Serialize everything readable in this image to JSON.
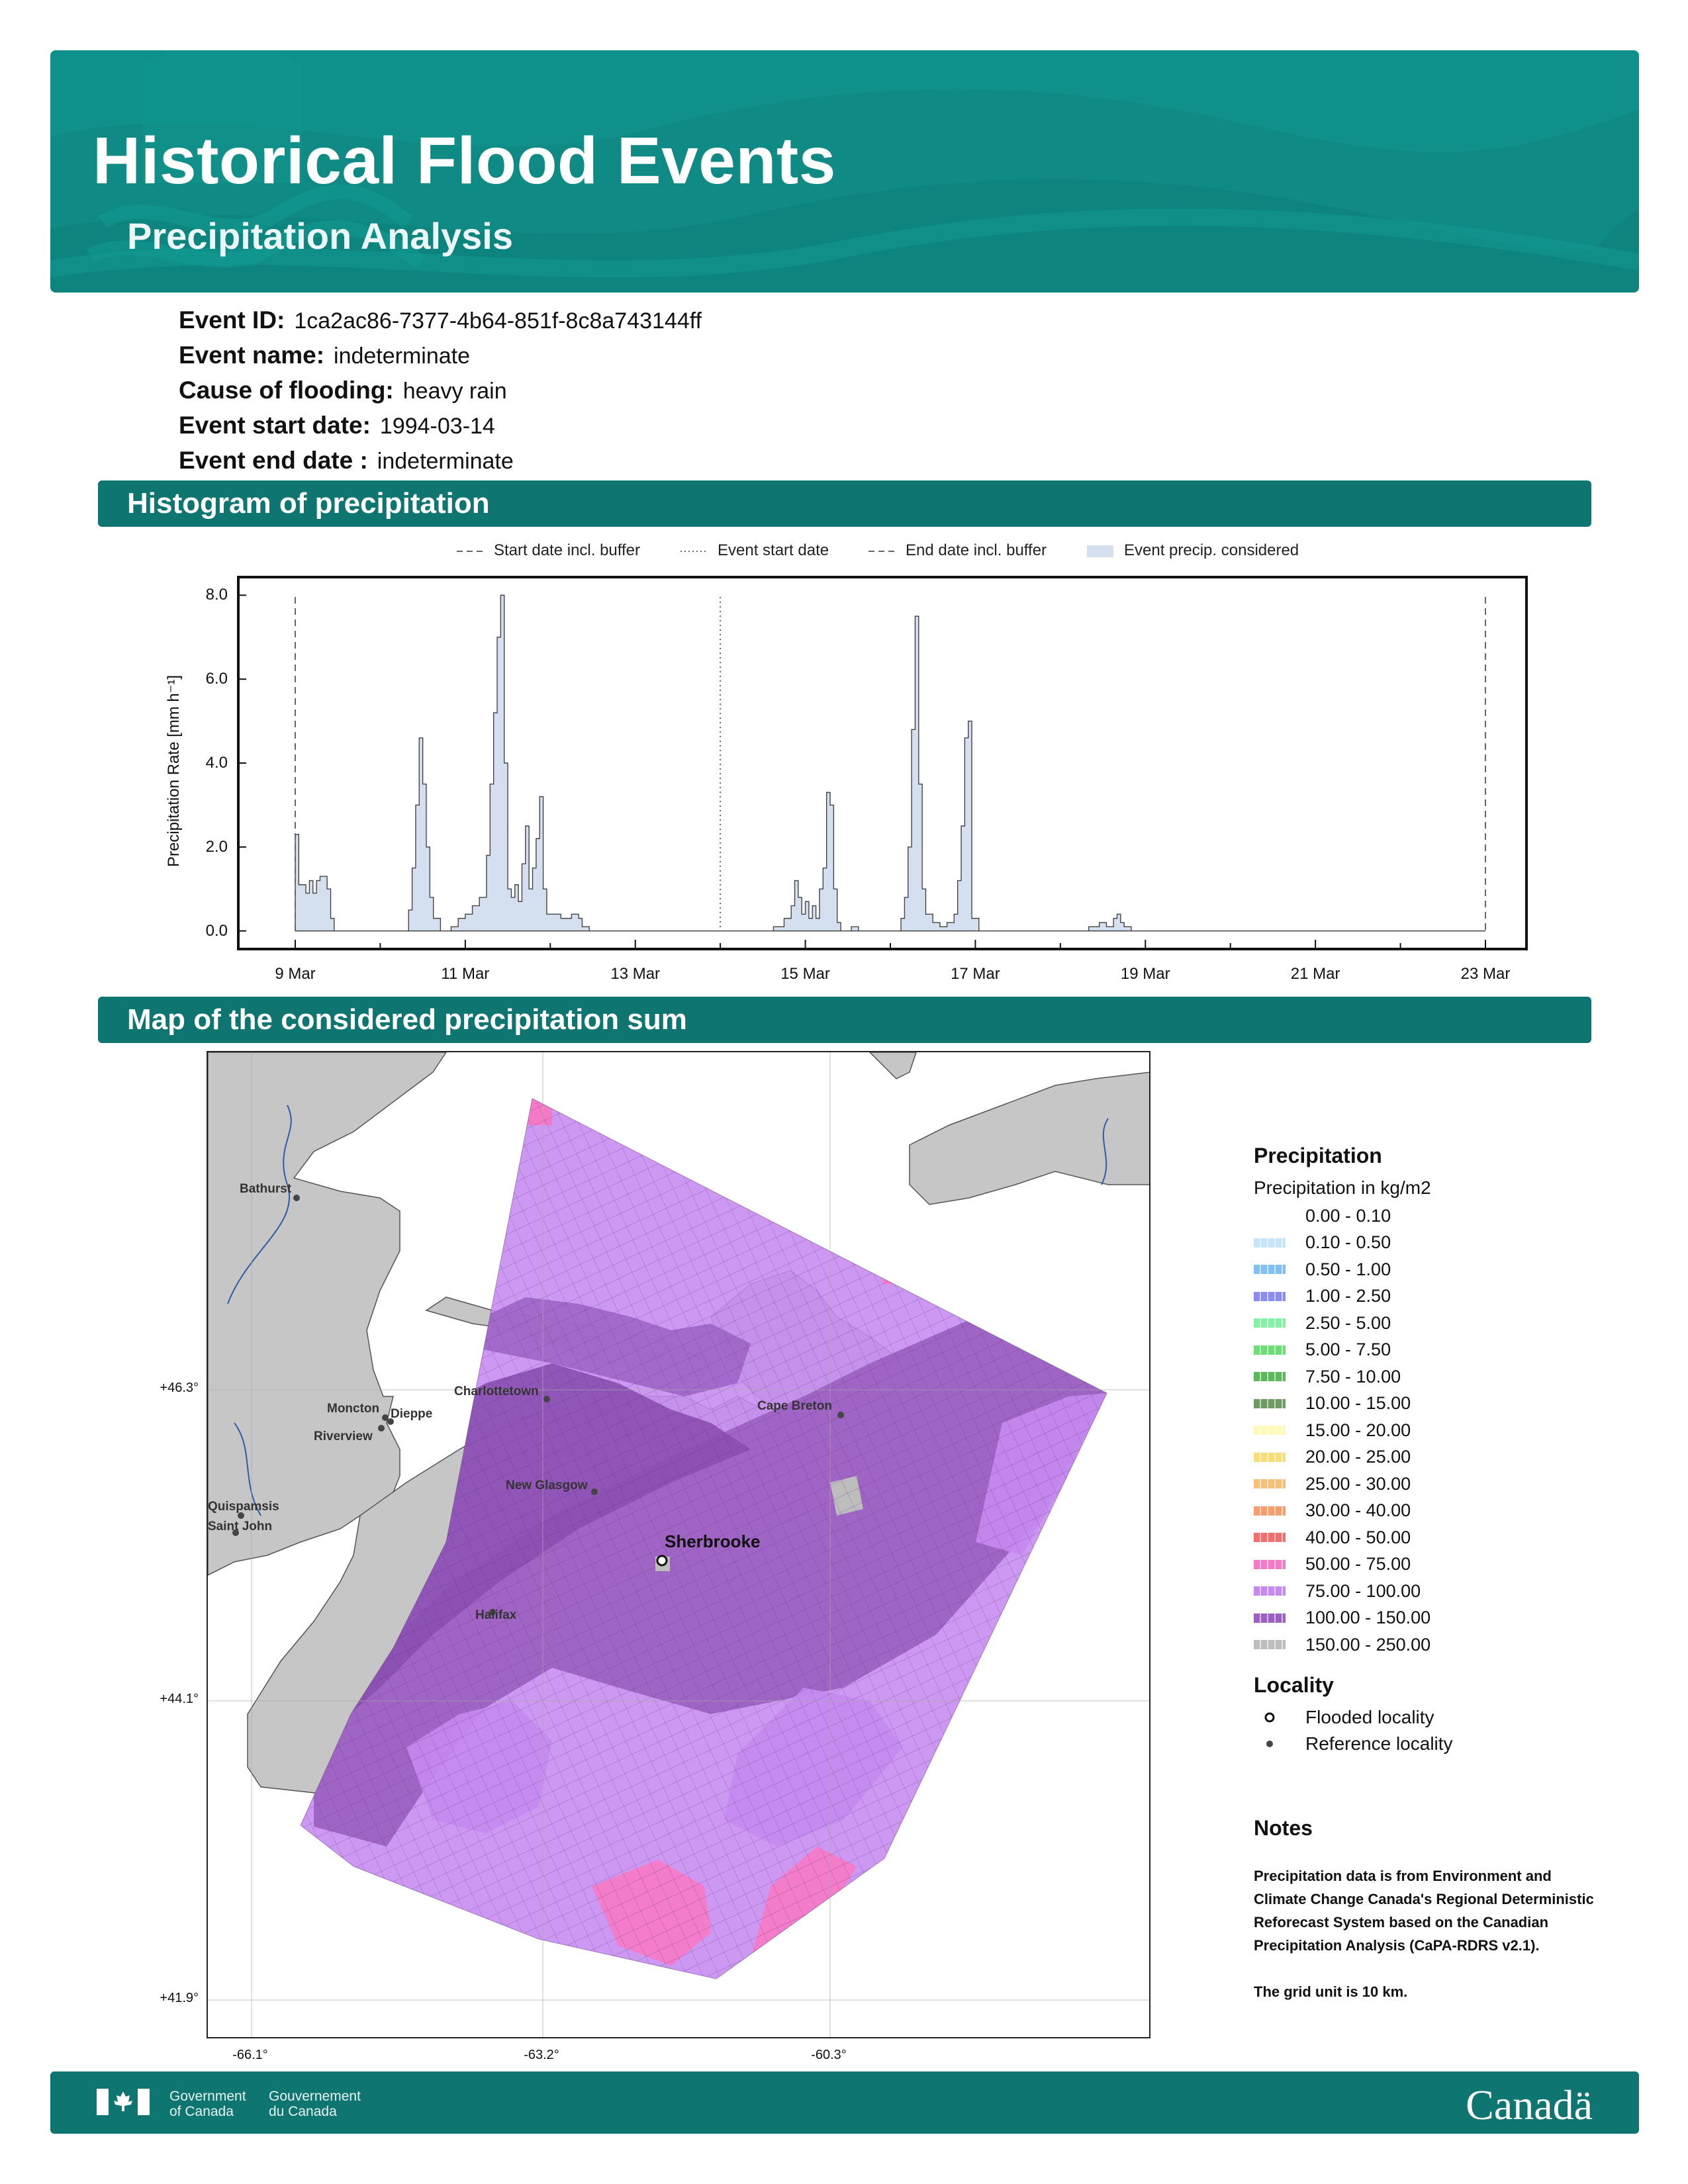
{
  "header": {
    "title": "Historical Flood Events",
    "subtitle": "Precipitation Analysis",
    "bg_color": "#0f8a84"
  },
  "event": [
    {
      "label": "Event ID:",
      "value": "1ca2ac86-7377-4b64-851f-8c8a743144ff"
    },
    {
      "label": "Event name:",
      "value": "indeterminate"
    },
    {
      "label": "Cause of flooding:",
      "value": "heavy rain"
    },
    {
      "label": "Event start date:",
      "value": "1994-03-14"
    },
    {
      "label": "Event end date :",
      "value": "indeterminate"
    }
  ],
  "sections": {
    "histogram": "Histogram of precipitation",
    "map": "Map of the considered precipitation sum"
  },
  "chart_data": {
    "type": "area",
    "ylabel": "Precipitation Rate [mm h⁻¹]",
    "ylim": [
      -0.4,
      8.4
    ],
    "yticks": [
      "0.0",
      "2.0",
      "4.0",
      "6.0",
      "8.0"
    ],
    "xticks": [
      "9 Mar",
      "11 Mar",
      "13 Mar",
      "15 Mar",
      "17 Mar",
      "19 Mar",
      "21 Mar",
      "23 Mar"
    ],
    "x_range_days": [
      "1994-03-09",
      "1994-03-23"
    ],
    "legend": [
      {
        "label": "Start date incl. buffer",
        "style": "dashed"
      },
      {
        "label": "Event start date",
        "style": "dotted"
      },
      {
        "label": "End date incl. buffer",
        "style": "dashed"
      },
      {
        "label": "Event precip. considered",
        "style": "fill"
      }
    ],
    "fill_color": "#d4dff0",
    "vlines": [
      {
        "date": "1994-03-09",
        "style": "dashed"
      },
      {
        "date": "1994-03-14",
        "style": "dotted"
      },
      {
        "date": "1994-03-23",
        "style": "dashed"
      }
    ],
    "series": [
      {
        "name": "Event precip. considered",
        "points": [
          [
            "1994-03-09 00:00",
            2.3
          ],
          [
            "1994-03-09 01:00",
            1.1
          ],
          [
            "1994-03-09 03:00",
            0.9
          ],
          [
            "1994-03-09 04:00",
            1.2
          ],
          [
            "1994-03-09 05:00",
            0.9
          ],
          [
            "1994-03-09 06:00",
            1.2
          ],
          [
            "1994-03-09 07:00",
            1.3
          ],
          [
            "1994-03-09 09:00",
            1.0
          ],
          [
            "1994-03-09 10:00",
            0.3
          ],
          [
            "1994-03-09 11:00",
            0.0
          ],
          [
            "1994-03-10 07:00",
            0.0
          ],
          [
            "1994-03-10 08:00",
            0.5
          ],
          [
            "1994-03-10 09:00",
            1.5
          ],
          [
            "1994-03-10 10:00",
            3.0
          ],
          [
            "1994-03-10 11:00",
            4.6
          ],
          [
            "1994-03-10 12:00",
            3.5
          ],
          [
            "1994-03-10 13:00",
            2.0
          ],
          [
            "1994-03-10 14:00",
            0.8
          ],
          [
            "1994-03-10 15:00",
            0.3
          ],
          [
            "1994-03-10 17:00",
            0.0
          ],
          [
            "1994-03-10 20:00",
            0.1
          ],
          [
            "1994-03-10 22:00",
            0.3
          ],
          [
            "1994-03-11 00:00",
            0.4
          ],
          [
            "1994-03-11 02:00",
            0.6
          ],
          [
            "1994-03-11 04:00",
            0.8
          ],
          [
            "1994-03-11 06:00",
            1.8
          ],
          [
            "1994-03-11 07:00",
            3.5
          ],
          [
            "1994-03-11 08:00",
            5.2
          ],
          [
            "1994-03-11 09:00",
            7.0
          ],
          [
            "1994-03-11 10:00",
            8.0
          ],
          [
            "1994-03-11 11:00",
            4.0
          ],
          [
            "1994-03-11 12:00",
            1.0
          ],
          [
            "1994-03-11 13:00",
            0.8
          ],
          [
            "1994-03-11 14:00",
            1.1
          ],
          [
            "1994-03-11 15:00",
            0.7
          ],
          [
            "1994-03-11 16:00",
            1.6
          ],
          [
            "1994-03-11 17:00",
            2.5
          ],
          [
            "1994-03-11 18:00",
            1.0
          ],
          [
            "1994-03-11 19:00",
            1.5
          ],
          [
            "1994-03-11 20:00",
            2.2
          ],
          [
            "1994-03-11 21:00",
            3.2
          ],
          [
            "1994-03-11 22:00",
            1.0
          ],
          [
            "1994-03-11 23:00",
            0.4
          ],
          [
            "1994-03-12 03:00",
            0.3
          ],
          [
            "1994-03-12 06:00",
            0.4
          ],
          [
            "1994-03-12 08:00",
            0.3
          ],
          [
            "1994-03-12 09:00",
            0.1
          ],
          [
            "1994-03-12 11:00",
            0.0
          ],
          [
            "1994-03-14 12:00",
            0.0
          ],
          [
            "1994-03-14 15:00",
            0.1
          ],
          [
            "1994-03-14 18:00",
            0.3
          ],
          [
            "1994-03-14 20:00",
            0.6
          ],
          [
            "1994-03-14 21:00",
            1.2
          ],
          [
            "1994-03-14 22:00",
            0.8
          ],
          [
            "1994-03-14 23:00",
            0.4
          ],
          [
            "1994-03-15 00:00",
            0.7
          ],
          [
            "1994-03-15 01:00",
            0.3
          ],
          [
            "1994-03-15 02:00",
            0.6
          ],
          [
            "1994-03-15 03:00",
            0.3
          ],
          [
            "1994-03-15 04:00",
            1.0
          ],
          [
            "1994-03-15 05:00",
            1.5
          ],
          [
            "1994-03-15 06:00",
            3.3
          ],
          [
            "1994-03-15 07:00",
            3.0
          ],
          [
            "1994-03-15 08:00",
            1.0
          ],
          [
            "1994-03-15 09:00",
            0.2
          ],
          [
            "1994-03-15 10:00",
            0.0
          ],
          [
            "1994-03-15 13:00",
            0.1
          ],
          [
            "1994-03-15 15:00",
            0.0
          ],
          [
            "1994-03-16 02:00",
            0.0
          ],
          [
            "1994-03-16 03:00",
            0.3
          ],
          [
            "1994-03-16 04:00",
            0.8
          ],
          [
            "1994-03-16 05:00",
            2.0
          ],
          [
            "1994-03-16 06:00",
            4.8
          ],
          [
            "1994-03-16 07:00",
            7.5
          ],
          [
            "1994-03-16 08:00",
            3.5
          ],
          [
            "1994-03-16 09:00",
            1.0
          ],
          [
            "1994-03-16 10:00",
            0.4
          ],
          [
            "1994-03-16 12:00",
            0.2
          ],
          [
            "1994-03-16 14:00",
            0.1
          ],
          [
            "1994-03-16 16:00",
            0.2
          ],
          [
            "1994-03-16 18:00",
            0.4
          ],
          [
            "1994-03-16 19:00",
            1.2
          ],
          [
            "1994-03-16 20:00",
            2.5
          ],
          [
            "1994-03-16 21:00",
            4.6
          ],
          [
            "1994-03-16 22:00",
            5.0
          ],
          [
            "1994-03-16 23:00",
            0.3
          ],
          [
            "1994-03-17 01:00",
            0.0
          ],
          [
            "1994-03-18 00:00",
            0.0
          ],
          [
            "1994-03-18 04:00",
            0.0
          ],
          [
            "1994-03-18 08:00",
            0.1
          ],
          [
            "1994-03-18 11:00",
            0.2
          ],
          [
            "1994-03-18 13:00",
            0.1
          ],
          [
            "1994-03-18 15:00",
            0.3
          ],
          [
            "1994-03-18 16:00",
            0.4
          ],
          [
            "1994-03-18 17:00",
            0.2
          ],
          [
            "1994-03-18 18:00",
            0.1
          ],
          [
            "1994-03-18 20:00",
            0.0
          ],
          [
            "1994-03-23 00:00",
            0.0
          ]
        ]
      }
    ]
  },
  "map": {
    "lat_labels": [
      "+46.3°",
      "+44.1°",
      "+41.9°"
    ],
    "lon_labels": [
      "-66.1°",
      "-63.2°",
      "-60.3°"
    ],
    "localities": [
      {
        "name": "Bathurst",
        "type": "reference"
      },
      {
        "name": "Charlottetown",
        "type": "reference"
      },
      {
        "name": "Moncton",
        "type": "reference"
      },
      {
        "name": "Dieppe",
        "type": "reference"
      },
      {
        "name": "Riverview",
        "type": "reference"
      },
      {
        "name": "Cape Breton",
        "type": "reference"
      },
      {
        "name": "New Glasgow",
        "type": "reference"
      },
      {
        "name": "Quispamsis",
        "type": "reference"
      },
      {
        "name": "Saint John",
        "type": "reference"
      },
      {
        "name": "Halifax",
        "type": "reference"
      },
      {
        "name": "Sherbrooke",
        "type": "flooded"
      }
    ]
  },
  "legend": {
    "title": "Precipitation",
    "subtitle": "Precipitation in kg/m2",
    "classes": [
      {
        "label": "0.00 - 0.10",
        "color": "#ffffff"
      },
      {
        "label": "0.10 - 0.50",
        "color": "#c6e3f7"
      },
      {
        "label": "0.50 - 1.00",
        "color": "#82c0ef"
      },
      {
        "label": "1.00 - 2.50",
        "color": "#8a8cf0"
      },
      {
        "label": "2.50 - 5.00",
        "color": "#86f0a8"
      },
      {
        "label": "5.00 - 7.50",
        "color": "#6fdc78"
      },
      {
        "label": "7.50 - 10.00",
        "color": "#5cb85a"
      },
      {
        "label": "10.00 - 15.00",
        "color": "#6f9a63"
      },
      {
        "label": "15.00 - 20.00",
        "color": "#fffab8"
      },
      {
        "label": "20.00 - 25.00",
        "color": "#f8de7a"
      },
      {
        "label": "25.00 - 30.00",
        "color": "#f5c07a"
      },
      {
        "label": "30.00 - 40.00",
        "color": "#f39f6e"
      },
      {
        "label": "40.00 - 50.00",
        "color": "#f07070"
      },
      {
        "label": "50.00 - 75.00",
        "color": "#f47ac8"
      },
      {
        "label": "75.00 - 100.00",
        "color": "#c58af0"
      },
      {
        "label": "100.00 - 150.00",
        "color": "#9a5fc0"
      },
      {
        "label": "150.00 - 250.00",
        "color": "#bdbdbd"
      }
    ],
    "locality_title": "Locality",
    "locality_items": [
      {
        "label": "Flooded locality",
        "symbol": "open-circle"
      },
      {
        "label": "Reference locality",
        "symbol": "dot"
      }
    ]
  },
  "notes": {
    "title": "Notes",
    "text1": "Precipitation data is from Environment and Climate Change Canada's Regional Deterministic Reforecast System based on the Canadian Precipitation Analysis (CaPA-RDRS v2.1).",
    "text2": "The grid unit is 10 km."
  },
  "footer": {
    "gov_en_1": "Government",
    "gov_en_2": "of Canada",
    "gov_fr_1": "Gouvernement",
    "gov_fr_2": "du Canada",
    "wordmark": "Canadä"
  }
}
